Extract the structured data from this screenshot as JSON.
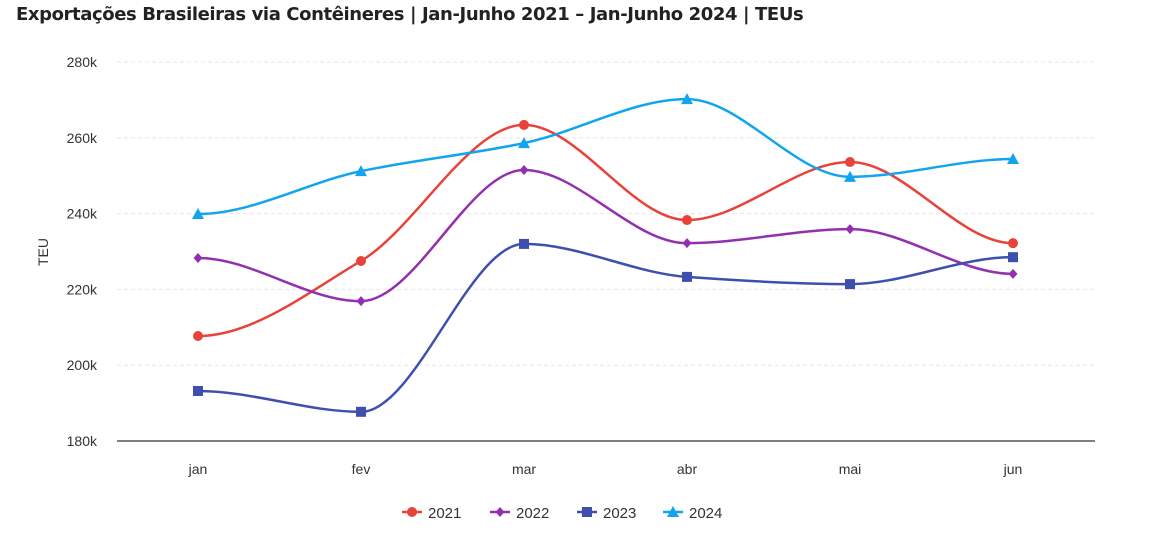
{
  "chart_data": {
    "type": "line",
    "title": "Exportações Brasileiras via Contêineres | Jan-Junho 2021 – Jan-Junho 2024 | TEUs",
    "xlabel": "",
    "ylabel": "TEU",
    "categories": [
      "jan",
      "fev",
      "mar",
      "abr",
      "mai",
      "jun"
    ],
    "ylim": [
      180000,
      280000
    ],
    "yticks": [
      180000,
      200000,
      220000,
      240000,
      260000,
      280000
    ],
    "ytick_labels": [
      "180k",
      "200k",
      "220k",
      "240k",
      "260k",
      "280k"
    ],
    "grid": true,
    "legend": "bottom",
    "series": [
      {
        "name": "2021",
        "color": "#e8433a",
        "marker": "circle",
        "values": [
          207700,
          227500,
          263400,
          238300,
          253600,
          232200
        ]
      },
      {
        "name": "2022",
        "color": "#9230b0",
        "marker": "diamond",
        "values": [
          228300,
          216900,
          251500,
          232200,
          235900,
          224100
        ]
      },
      {
        "name": "2023",
        "color": "#3f4fae",
        "marker": "square",
        "values": [
          193200,
          187700,
          232000,
          223300,
          221400,
          228500
        ]
      },
      {
        "name": "2024",
        "color": "#12a5ec",
        "marker": "triangle",
        "values": [
          239900,
          251200,
          258600,
          270200,
          249700,
          254400
        ]
      }
    ]
  }
}
